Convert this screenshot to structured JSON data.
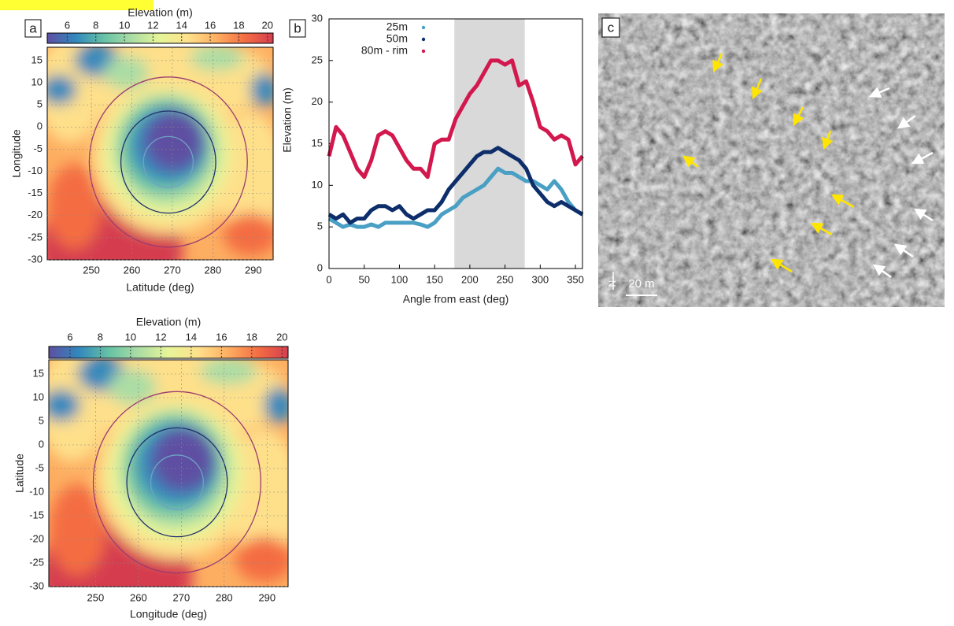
{
  "chart_data": [
    {
      "type": "heatmap",
      "label": "a",
      "colorbar_title": "Elevation (m)",
      "clim": [
        4.6,
        20.4
      ],
      "cticks": [
        6,
        8,
        10,
        12,
        14,
        16,
        18,
        20
      ],
      "colormap": [
        "#5e4fa2",
        "#3288bd",
        "#66c2a5",
        "#abdda4",
        "#e6f598",
        "#fee08b",
        "#fdae61",
        "#f46d43",
        "#d53e4f"
      ],
      "xlabel": "Latitude (deg)",
      "ylabel": "Longitude",
      "xlim": [
        239.1,
        294.9
      ],
      "xticks": [
        250,
        260,
        270,
        280,
        290
      ],
      "ylim": [
        -30,
        18
      ],
      "yticks": [
        -30,
        -25,
        -20,
        -15,
        -10,
        -5,
        0,
        5,
        10,
        15
      ]
    },
    {
      "type": "line",
      "label": "b",
      "xlabel": "Angle from east (deg)",
      "ylabel": "Elevation (m)",
      "xlim": [
        0,
        360
      ],
      "xticks": [
        0,
        50,
        100,
        150,
        200,
        250,
        300,
        350
      ],
      "ylim": [
        0,
        30
      ],
      "yticks": [
        0,
        5,
        10,
        15,
        20,
        25,
        30
      ],
      "shaded_range": [
        178,
        278
      ],
      "x": [
        0,
        10,
        20,
        30,
        40,
        50,
        60,
        70,
        80,
        90,
        100,
        110,
        120,
        130,
        140,
        150,
        160,
        170,
        180,
        190,
        200,
        210,
        220,
        230,
        240,
        250,
        260,
        270,
        280,
        290,
        300,
        310,
        320,
        330,
        340,
        350,
        360
      ],
      "series": [
        {
          "name": "25m",
          "color": "#4a9fc4",
          "values": [
            6,
            5.5,
            5,
            5.3,
            5,
            5,
            5.3,
            5,
            5.5,
            5.5,
            5.5,
            5.5,
            5.5,
            5.3,
            5,
            5.5,
            6.5,
            7,
            7.5,
            8.5,
            9,
            9.5,
            10,
            11,
            12,
            11.5,
            11.5,
            11,
            10.5,
            10.5,
            10,
            9.5,
            10.5,
            9.5,
            8,
            7,
            6.5
          ]
        },
        {
          "name": "50m",
          "color": "#0d2e6b",
          "values": [
            6.5,
            6,
            6.5,
            5.5,
            6,
            6,
            7,
            7.5,
            7.5,
            7,
            7.5,
            6.5,
            6,
            6.5,
            7,
            7,
            8,
            9.5,
            10.5,
            11.5,
            12.5,
            13.5,
            14,
            14,
            14.5,
            14,
            13.5,
            13,
            12,
            10,
            9,
            8,
            7.5,
            8,
            7.5,
            7,
            6.5
          ]
        },
        {
          "name": "80m - rim",
          "color": "#d3184e",
          "values": [
            13.5,
            17,
            16,
            14,
            12,
            11,
            13,
            16,
            16.5,
            16,
            14.5,
            13,
            12,
            12,
            11,
            15,
            15.5,
            15.5,
            18,
            19.5,
            21,
            22,
            23.5,
            25,
            25,
            24.5,
            25,
            22,
            22.5,
            20,
            17,
            16.5,
            15.5,
            16,
            15.5,
            12.5,
            13.5
          ]
        }
      ]
    },
    {
      "type": "heatmap",
      "colorbar_title": "Elevation (m)",
      "clim": [
        4.6,
        20.4
      ],
      "cticks": [
        6,
        8,
        10,
        12,
        14,
        16,
        18,
        20
      ],
      "colormap": [
        "#5e4fa2",
        "#3288bd",
        "#66c2a5",
        "#abdda4",
        "#e6f598",
        "#fee08b",
        "#fdae61",
        "#f46d43",
        "#d53e4f"
      ],
      "xlabel": "Longitude (deg)",
      "ylabel": "Latitude",
      "xlim": [
        239.1,
        294.9
      ],
      "xticks": [
        250,
        260,
        270,
        280,
        290
      ],
      "ylim": [
        -30,
        18
      ],
      "yticks": [
        -30,
        -25,
        -20,
        -15,
        -10,
        -5,
        0,
        5,
        10,
        15
      ]
    }
  ],
  "image_panel": {
    "label": "c",
    "north": "N",
    "scale_label": "20 m"
  }
}
